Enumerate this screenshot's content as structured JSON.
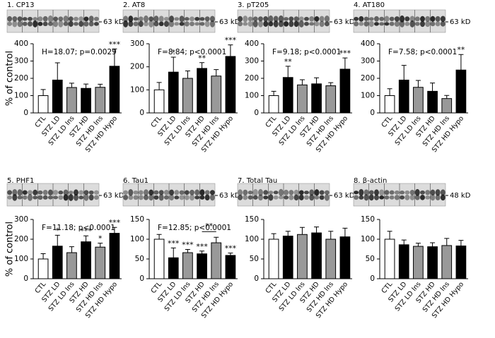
{
  "chart_data": [
    {
      "type": "bar",
      "title": "1. CP13",
      "band": "63 kD",
      "stat": "H=18.07; p=0.0029",
      "ylabel": "% of control",
      "categories": [
        "CTL",
        "STZ LD",
        "STZ LD Ins",
        "STZ HD",
        "STZ HD Ins",
        "STZ HD Hypo"
      ],
      "values": [
        100,
        190,
        147,
        142,
        148,
        270
      ],
      "errors": [
        35,
        100,
        25,
        25,
        18,
        100
      ],
      "colors": [
        "#ffffff",
        "#000000",
        "#999999",
        "#000000",
        "#999999",
        "#000000"
      ],
      "significance": [
        null,
        null,
        null,
        null,
        null,
        "***"
      ],
      "ylim": [
        0,
        400
      ],
      "yticks": [
        0,
        100,
        200,
        300,
        400
      ]
    },
    {
      "type": "bar",
      "title": "2. AT8",
      "band": "63 kD",
      "stat": "F=8.84; p<0.0001",
      "categories": [
        "CTL",
        "STZ LD",
        "STZ LD Ins",
        "STZ HD",
        "STZ HD Ins",
        "STZ HD Hypo"
      ],
      "values": [
        100,
        177,
        150,
        193,
        160,
        245
      ],
      "errors": [
        32,
        65,
        32,
        25,
        28,
        50
      ],
      "colors": [
        "#ffffff",
        "#000000",
        "#999999",
        "#000000",
        "#999999",
        "#000000"
      ],
      "significance": [
        null,
        "*",
        null,
        "**",
        null,
        "***"
      ],
      "ylim": [
        0,
        300
      ],
      "yticks": [
        0,
        100,
        200,
        300
      ]
    },
    {
      "type": "bar",
      "title": "3. pT205",
      "band": "63 kD",
      "stat": "F=9.18; p<0.0001",
      "categories": [
        "CTL",
        "STZ LD",
        "STZ LD Ins",
        "STZ HD",
        "STZ HD Ins",
        "STZ HD Hypo"
      ],
      "values": [
        100,
        205,
        162,
        168,
        157,
        253
      ],
      "errors": [
        25,
        65,
        30,
        35,
        18,
        65
      ],
      "colors": [
        "#ffffff",
        "#000000",
        "#999999",
        "#000000",
        "#999999",
        "#000000"
      ],
      "significance": [
        null,
        "**",
        null,
        null,
        null,
        "***"
      ],
      "ylim": [
        0,
        400
      ],
      "yticks": [
        0,
        100,
        200,
        300,
        400
      ]
    },
    {
      "type": "bar",
      "title": "4. AT180",
      "band": "63 kD",
      "stat": "F=7.58; p<0.0001",
      "categories": [
        "CTL",
        "STZ LD",
        "STZ LD Ins",
        "STZ HD",
        "STZ HD Ins",
        "STZ HD Hypo"
      ],
      "values": [
        100,
        190,
        148,
        125,
        83,
        248
      ],
      "errors": [
        40,
        85,
        40,
        48,
        18,
        90
      ],
      "colors": [
        "#ffffff",
        "#000000",
        "#999999",
        "#000000",
        "#999999",
        "#000000"
      ],
      "significance": [
        null,
        null,
        null,
        null,
        null,
        "**"
      ],
      "ylim": [
        0,
        400
      ],
      "yticks": [
        0,
        100,
        200,
        300,
        400
      ]
    },
    {
      "type": "bar",
      "title": "5. PHF1",
      "band": "63 kD",
      "stat": "F=11.18; p<0.0001",
      "ylabel": "% of control",
      "categories": [
        "CTL",
        "STZ LD",
        "STZ LD Ins",
        "STZ HD",
        "STZ HD Ins",
        "STZ HD Hypo"
      ],
      "values": [
        100,
        165,
        132,
        187,
        160,
        230
      ],
      "errors": [
        27,
        55,
        30,
        30,
        20,
        30
      ],
      "colors": [
        "#ffffff",
        "#000000",
        "#999999",
        "#000000",
        "#999999",
        "#000000"
      ],
      "significance": [
        null,
        "*",
        null,
        "***",
        "*",
        "***"
      ],
      "ylim": [
        0,
        300
      ],
      "yticks": [
        0,
        100,
        200,
        300
      ]
    },
    {
      "type": "bar",
      "title": "6. Tau1",
      "band": "63 kD",
      "stat": "F=12.85; p<0.0001",
      "categories": [
        "CTL",
        "STZ LD",
        "STZ LD Ins",
        "STZ HD",
        "STZ HD Ins",
        "STZ HD Hypo"
      ],
      "values": [
        100,
        53,
        66,
        63,
        91,
        59
      ],
      "errors": [
        12,
        25,
        8,
        7,
        14,
        6
      ],
      "colors": [
        "#ffffff",
        "#000000",
        "#999999",
        "#000000",
        "#999999",
        "#000000"
      ],
      "significance": [
        null,
        "***",
        "***",
        "***",
        null,
        "***"
      ],
      "bracket": {
        "between": [
          "STZ HD",
          "STZ HD Ins"
        ],
        "label": "**"
      },
      "ylim": [
        0,
        150
      ],
      "yticks": [
        0,
        50,
        100,
        150
      ]
    },
    {
      "type": "bar",
      "title": "7. Total Tau",
      "band": "63 kD",
      "categories": [
        "CTL",
        "STZ LD",
        "STZ LD Ins",
        "STZ HD",
        "STZ HD Ins",
        "STZ HD Hypo"
      ],
      "values": [
        100,
        108,
        112,
        116,
        100,
        106
      ],
      "errors": [
        14,
        12,
        18,
        15,
        20,
        22
      ],
      "colors": [
        "#ffffff",
        "#000000",
        "#999999",
        "#000000",
        "#999999",
        "#000000"
      ],
      "ylim": [
        0,
        150
      ],
      "yticks": [
        0,
        50,
        100,
        150
      ]
    },
    {
      "type": "bar",
      "title": "8. β-actin",
      "band": "48 kD",
      "categories": [
        "CTL",
        "STZ LD",
        "STZ LD Ins",
        "STZ HD",
        "STZ HD Ins",
        "STZ HD Hypo"
      ],
      "values": [
        100,
        86,
        82,
        81,
        84,
        83
      ],
      "errors": [
        20,
        12,
        8,
        10,
        18,
        14
      ],
      "colors": [
        "#ffffff",
        "#000000",
        "#999999",
        "#000000",
        "#999999",
        "#000000"
      ],
      "ylim": [
        0,
        150
      ],
      "yticks": [
        0,
        50,
        100,
        150
      ]
    }
  ]
}
